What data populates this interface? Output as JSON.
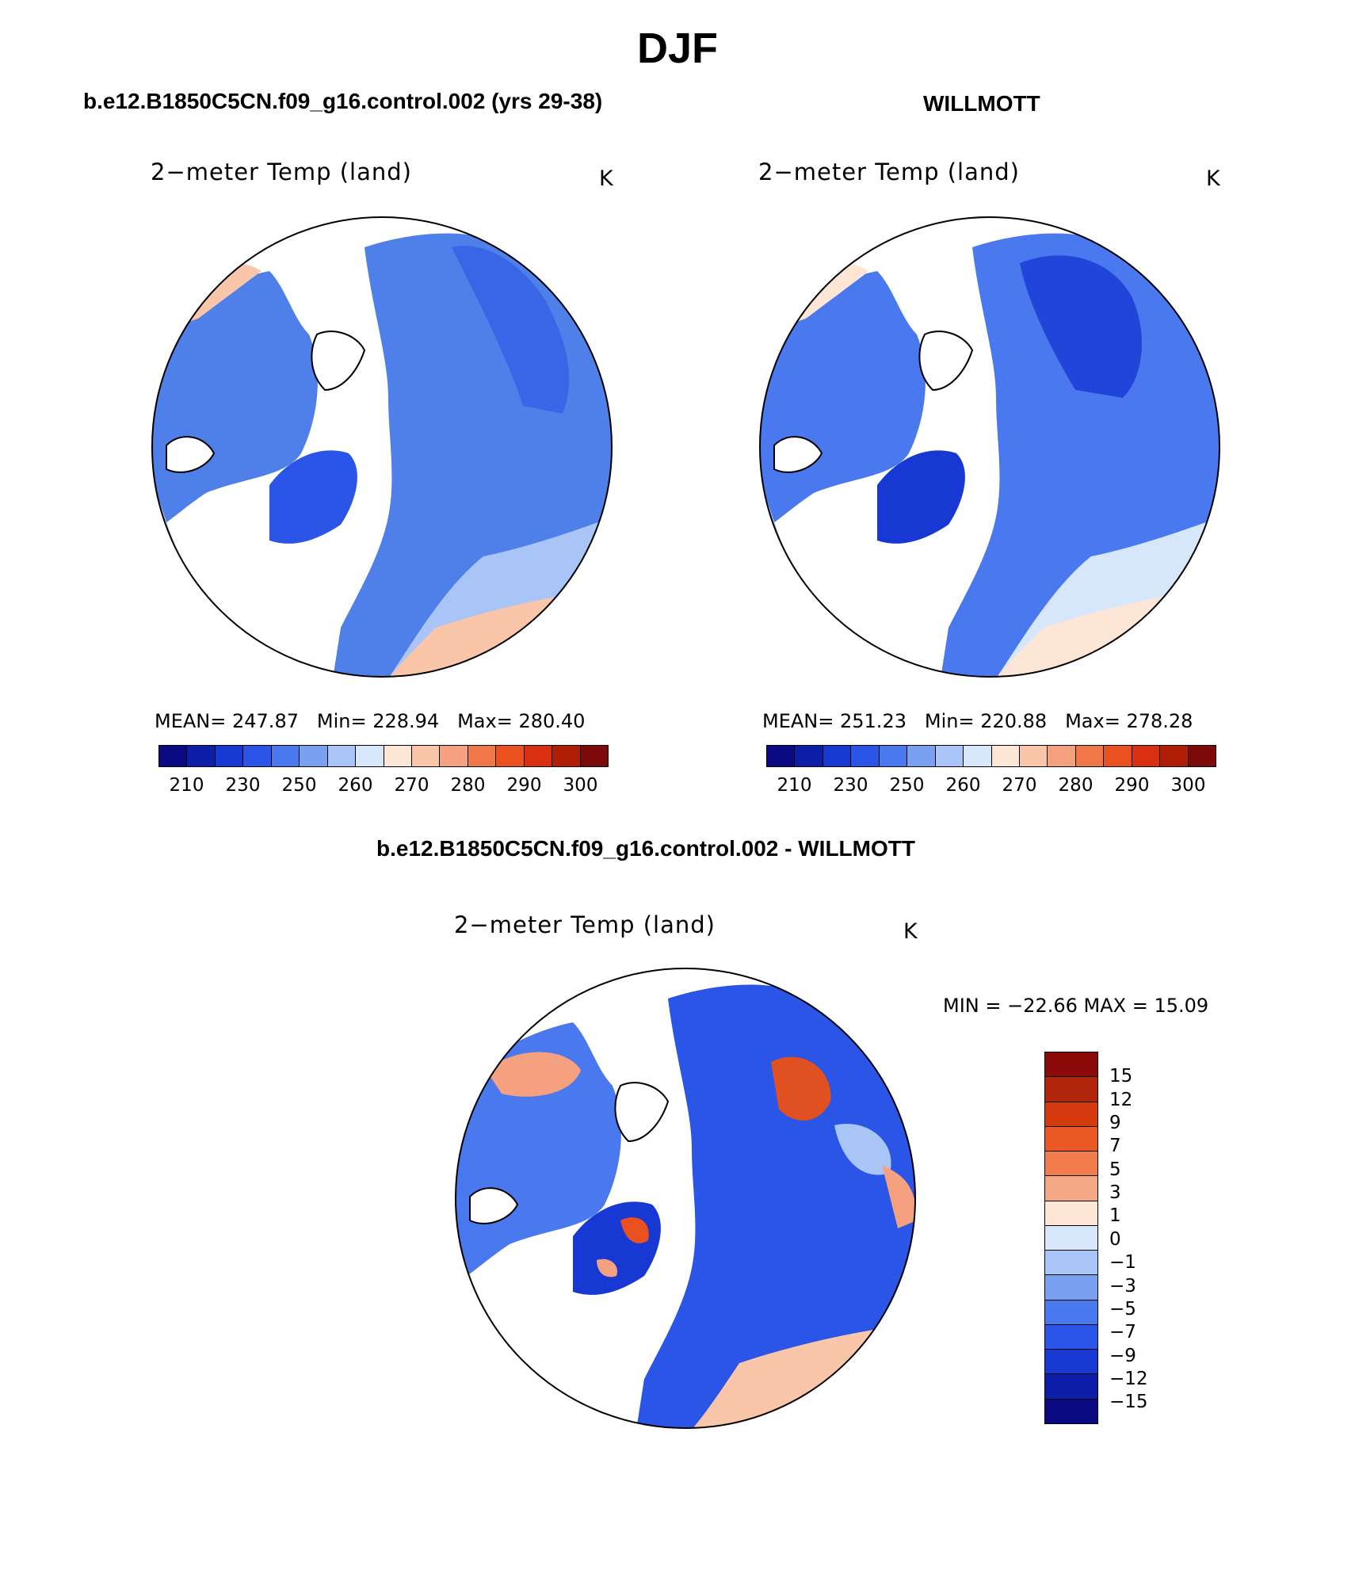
{
  "figure": {
    "main_title": "DJF",
    "left_case": "b.e12.B1850C5CN.f09_g16.control.002 (yrs 29-38)",
    "right_case": "WILLMOTT",
    "diff_title": "b.e12.B1850C5CN.f09_g16.control.002 - WILLMOTT"
  },
  "panels": {
    "left": {
      "plot_title": "2−meter Temp (land)",
      "units": "K",
      "mean_label": "MEAN=",
      "mean": "247.87",
      "min_label": "Min=",
      "min": "228.94",
      "max_label": "Max=",
      "max": "280.40"
    },
    "right": {
      "plot_title": "2−meter Temp (land)",
      "units": "K",
      "mean_label": "MEAN=",
      "mean": "251.23",
      "min_label": "Min=",
      "min": "220.88",
      "max_label": "Max=",
      "max": "278.28"
    },
    "diff": {
      "plot_title": "2−meter Temp (land)",
      "units": "K",
      "minmax_text": "MIN  =  −22.66  MAX  =     15.09"
    }
  },
  "colorbars": {
    "abs_colors": [
      "#0a0a82",
      "#0d1fa8",
      "#1738d2",
      "#2a55e6",
      "#4a78ee",
      "#7aa0f2",
      "#a9c4f6",
      "#d6e6fb",
      "#fde6d6",
      "#fac6aa",
      "#f5a07e",
      "#f07848",
      "#ea5020",
      "#d83010",
      "#b01e08",
      "#7d0a0a"
    ],
    "abs_tick_labels": [
      "210",
      "230",
      "250",
      "260",
      "270",
      "280",
      "290",
      "300"
    ],
    "diff_colors": [
      "#8b0a0a",
      "#b0260c",
      "#d43a0e",
      "#ea5826",
      "#f27c4e",
      "#f5a886",
      "#fde6d6",
      "#d6e6fb",
      "#a9c4f6",
      "#7aa0f2",
      "#4a78ee",
      "#2a55e6",
      "#1738d2",
      "#0d1fa8",
      "#0a0a82"
    ],
    "diff_tick_labels": [
      "15",
      "12",
      "9",
      "7",
      "5",
      "3",
      "1",
      "0",
      "−1",
      "−3",
      "−5",
      "−7",
      "−9",
      "−12",
      "−15"
    ]
  }
}
